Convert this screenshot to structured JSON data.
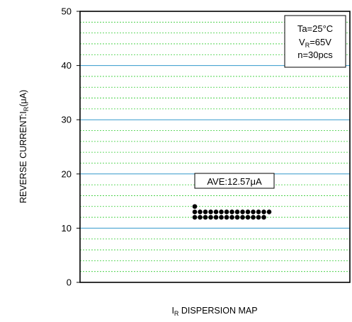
{
  "chart_data": {
    "type": "scatter",
    "title": "",
    "xlabel": {
      "main": "I",
      "sub": "R",
      "rest": " DISPERSION MAP"
    },
    "ylabel": {
      "main": "REVERSE CURRENT:I",
      "sub": "R",
      "rest": "(μA)"
    },
    "ylim": [
      0,
      50
    ],
    "yticks": [
      0,
      10,
      20,
      30,
      40,
      50
    ],
    "grid": {
      "major": "horizontal solid blue every 10",
      "minor": "horizontal dashed green every 2"
    },
    "colors": {
      "major_grid": "#3399cc",
      "minor_grid": "#33cc33",
      "points": "#000000"
    },
    "annotation": {
      "text": "AVE:12.57μA"
    },
    "legend": {
      "placement": "top-right",
      "line1": "Ta=25°C",
      "line2": {
        "main": "V",
        "sub": "R",
        "rest": "=65V"
      },
      "line3": "n=30pcs"
    },
    "points": [
      {
        "x": 1,
        "y": 14.0
      },
      {
        "x": 1,
        "y": 13.0
      },
      {
        "x": 2,
        "y": 13.0
      },
      {
        "x": 3,
        "y": 13.0
      },
      {
        "x": 4,
        "y": 13.0
      },
      {
        "x": 5,
        "y": 13.0
      },
      {
        "x": 6,
        "y": 13.0
      },
      {
        "x": 7,
        "y": 13.0
      },
      {
        "x": 8,
        "y": 13.0
      },
      {
        "x": 9,
        "y": 13.0
      },
      {
        "x": 10,
        "y": 13.0
      },
      {
        "x": 11,
        "y": 13.0
      },
      {
        "x": 12,
        "y": 13.0
      },
      {
        "x": 13,
        "y": 13.0
      },
      {
        "x": 14,
        "y": 13.0
      },
      {
        "x": 15,
        "y": 13.0
      },
      {
        "x": 1,
        "y": 12.0
      },
      {
        "x": 2,
        "y": 12.0
      },
      {
        "x": 3,
        "y": 12.0
      },
      {
        "x": 4,
        "y": 12.0
      },
      {
        "x": 5,
        "y": 12.0
      },
      {
        "x": 6,
        "y": 12.0
      },
      {
        "x": 7,
        "y": 12.0
      },
      {
        "x": 8,
        "y": 12.0
      },
      {
        "x": 9,
        "y": 12.0
      },
      {
        "x": 10,
        "y": 12.0
      },
      {
        "x": 11,
        "y": 12.0
      },
      {
        "x": 12,
        "y": 12.0
      },
      {
        "x": 13,
        "y": 12.0
      },
      {
        "x": 14,
        "y": 12.0
      }
    ]
  }
}
